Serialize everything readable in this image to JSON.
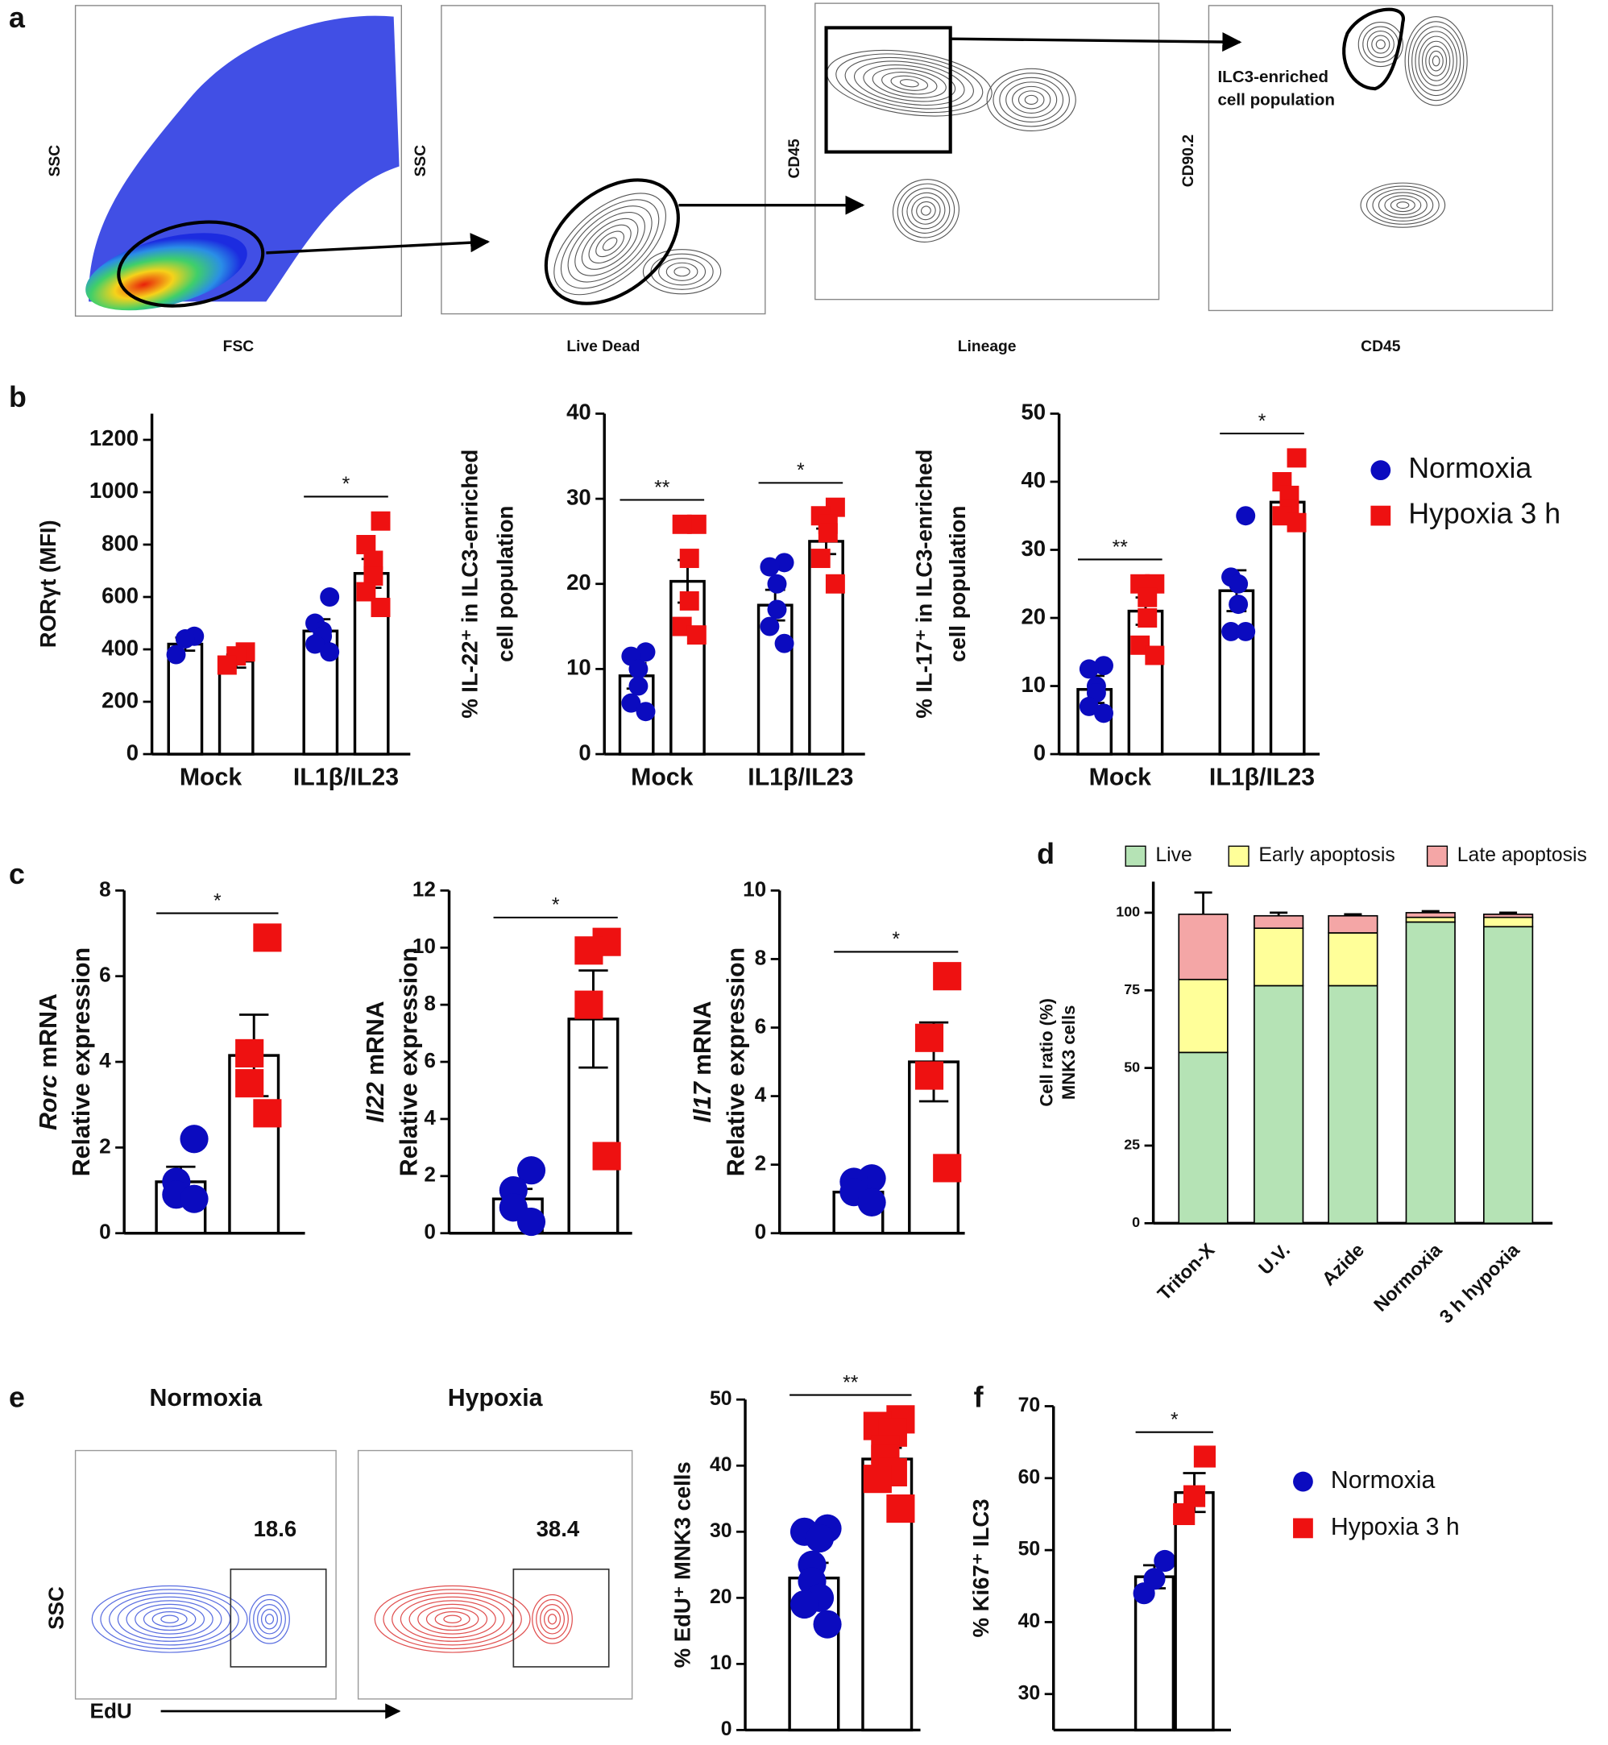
{
  "panel_labels": [
    "a",
    "b",
    "c",
    "d",
    "e",
    "f"
  ],
  "flow": {
    "a": [
      {
        "x": "FSC",
        "y": "SSC"
      },
      {
        "x": "Live Dead",
        "y": "SSC"
      },
      {
        "x": "Lineage",
        "y": "CD45"
      },
      {
        "x": "CD45",
        "y": "CD90.2"
      }
    ],
    "gate_label": [
      "ILC3-enriched",
      "cell population"
    ],
    "e": [
      {
        "title": "Normoxia",
        "value": 18.6
      },
      {
        "title": "Hypoxia",
        "value": 38.4
      }
    ],
    "e_axes": {
      "x": "EdU",
      "y": "SSC"
    }
  },
  "chart_data": [
    {
      "type": "bar",
      "ylabel": [
        "RORγt (MFI)"
      ],
      "categories": [
        "Mock",
        "IL1β/IL23"
      ],
      "ylim": [
        0,
        1300
      ],
      "yticks": [
        0,
        200,
        400,
        600,
        800,
        1000,
        1200
      ],
      "series": [
        {
          "color": "#0b0bbf",
          "marker": "circle",
          "values": [
            420,
            470
          ],
          "errors": [
            25,
            45
          ],
          "points": [
            [
              450,
              440,
              380
            ],
            [
              600,
              500,
              470,
              450,
              420,
              390
            ]
          ]
        },
        {
          "color": "#ee1111",
          "marker": "square",
          "values": [
            355,
            690
          ],
          "errors": [
            25,
            55
          ],
          "points": [
            [
              390,
              375,
              340
            ],
            [
              890,
              800,
              740,
              680,
              620,
              560
            ]
          ]
        }
      ],
      "annotations": [
        {
          "text": "*",
          "category": 1
        }
      ]
    },
    {
      "type": "bar",
      "ylabel": [
        "% IL-22⁺ in ILC3-enriched",
        "cell population"
      ],
      "categories": [
        "Mock",
        "IL1β/IL23"
      ],
      "ylim": [
        0,
        40
      ],
      "yticks": [
        0,
        10,
        20,
        30,
        40
      ],
      "series": [
        {
          "color": "#0b0bbf",
          "marker": "circle",
          "values": [
            9.2,
            17.5
          ],
          "errors": [
            1.5,
            1.8
          ],
          "points": [
            [
              12,
              11.5,
              10,
              8,
              6,
              5
            ],
            [
              22.5,
              22,
              20,
              17,
              15,
              13
            ]
          ]
        },
        {
          "color": "#ee1111",
          "marker": "square",
          "values": [
            20.3,
            25
          ],
          "errors": [
            2.5,
            1.5
          ],
          "points": [
            [
              27,
              27,
              23,
              18,
              15,
              14
            ],
            [
              29,
              28,
              27,
              26,
              23,
              20
            ]
          ]
        }
      ],
      "annotations": [
        {
          "text": "**",
          "category": 0
        },
        {
          "text": "*",
          "category": 1
        }
      ]
    },
    {
      "type": "bar",
      "ylabel": [
        "% IL-17⁺ in ILC3-enriched",
        "cell population"
      ],
      "categories": [
        "Mock",
        "IL1β/IL23"
      ],
      "ylim": [
        0,
        50
      ],
      "yticks": [
        0,
        10,
        20,
        30,
        40,
        50
      ],
      "legend": "right",
      "series": [
        {
          "name": "Normoxia",
          "color": "#0b0bbf",
          "marker": "circle",
          "values": [
            9.5,
            24
          ],
          "errors": [
            2,
            3
          ],
          "points": [
            [
              13,
              12.5,
              10,
              9,
              7,
              6
            ],
            [
              35,
              26,
              25,
              22,
              18,
              18
            ]
          ]
        },
        {
          "name": "Hypoxia 3 h",
          "color": "#ee1111",
          "marker": "square",
          "values": [
            21,
            37
          ],
          "errors": [
            2,
            2
          ],
          "points": [
            [
              25,
              25,
              23,
              20,
              16,
              14.5
            ],
            [
              43.5,
              40,
              38,
              36,
              35,
              34
            ]
          ]
        }
      ],
      "annotations": [
        {
          "text": "**",
          "category": 0
        },
        {
          "text": "*",
          "category": 1
        }
      ]
    },
    {
      "type": "bar",
      "ylabel_gene": "Rorc",
      "ylabel": [
        "mRNA",
        "Relative expression"
      ],
      "ylim": [
        0,
        8
      ],
      "yticks": [
        0,
        2,
        4,
        6,
        8
      ],
      "series": [
        {
          "color": "#0b0bbf",
          "marker": "circle",
          "values": [
            1.2
          ],
          "errors": [
            0.35
          ],
          "points": [
            [
              2.2,
              1.2,
              0.9,
              0.8
            ]
          ]
        },
        {
          "color": "#ee1111",
          "marker": "square",
          "values": [
            4.15
          ],
          "errors": [
            0.95
          ],
          "points": [
            [
              6.9,
              4.2,
              3.5,
              2.8
            ]
          ]
        }
      ],
      "annotations": [
        {
          "text": "*"
        }
      ]
    },
    {
      "type": "bar",
      "ylabel_gene": "Il22",
      "ylabel": [
        "mRNA",
        "Relative expression"
      ],
      "ylim": [
        0,
        12
      ],
      "yticks": [
        0,
        2,
        4,
        6,
        8,
        10,
        12
      ],
      "series": [
        {
          "color": "#0b0bbf",
          "marker": "circle",
          "values": [
            1.2
          ],
          "errors": [
            0.35
          ],
          "points": [
            [
              2.2,
              1.5,
              0.9,
              0.4
            ]
          ]
        },
        {
          "color": "#ee1111",
          "marker": "square",
          "values": [
            7.5
          ],
          "errors": [
            1.7
          ],
          "points": [
            [
              10.2,
              9.9,
              8,
              2.7
            ]
          ]
        }
      ],
      "annotations": [
        {
          "text": "*"
        }
      ]
    },
    {
      "type": "bar",
      "ylabel_gene": "Il17",
      "ylabel": [
        "mRNA",
        "Relative expression"
      ],
      "ylim": [
        0,
        10
      ],
      "yticks": [
        0,
        2,
        4,
        6,
        8,
        10
      ],
      "series": [
        {
          "color": "#0b0bbf",
          "marker": "circle",
          "values": [
            1.2
          ],
          "errors": [
            0.2
          ],
          "points": [
            [
              1.6,
              1.5,
              1.2,
              0.9
            ]
          ]
        },
        {
          "color": "#ee1111",
          "marker": "square",
          "values": [
            5.0
          ],
          "errors": [
            1.15
          ],
          "points": [
            [
              7.5,
              5.7,
              4.6,
              1.9
            ]
          ]
        }
      ],
      "annotations": [
        {
          "text": "*"
        }
      ]
    },
    {
      "type": "stacked_bar",
      "ylabel": [
        "Cell ratio (%)",
        "MNK3 cells"
      ],
      "categories": [
        "Triton-X",
        "U.V.",
        "Azide",
        "Normoxia",
        "3 h hypoxia"
      ],
      "ylim": [
        0,
        110
      ],
      "yticks": [
        0,
        25,
        50,
        75,
        100
      ],
      "legend": "top",
      "series": [
        {
          "name": "Live",
          "color": "#b5e3b5",
          "values": [
            55,
            76.5,
            76.5,
            97,
            95.5
          ],
          "errors": [
            6,
            2.5,
            2.5,
            0.5,
            0.5
          ]
        },
        {
          "name": "Early apoptosis",
          "color": "#ffff99",
          "values": [
            23.5,
            18.5,
            17,
            1.5,
            3
          ],
          "errors": [
            1,
            1.5,
            1.5,
            0.5,
            0.5
          ]
        },
        {
          "name": "Late apoptosis",
          "color": "#f4a6a6",
          "values": [
            21,
            4,
            5.5,
            1.5,
            1
          ],
          "errors": [
            7,
            1,
            0.5,
            0.5,
            0.5
          ]
        }
      ]
    },
    {
      "type": "bar",
      "ylabel": [
        "% EdU⁺ MNK3 cells"
      ],
      "ylim": [
        0,
        50
      ],
      "yticks": [
        0,
        10,
        20,
        30,
        40,
        50
      ],
      "series": [
        {
          "color": "#0b0bbf",
          "marker": "circle",
          "values": [
            23
          ],
          "errors": [
            2.3
          ],
          "points": [
            [
              30.5,
              30,
              29,
              25,
              22.5,
              20,
              19,
              16
            ]
          ]
        },
        {
          "color": "#ee1111",
          "marker": "square",
          "values": [
            41
          ],
          "errors": [
            1.7
          ],
          "points": [
            [
              47,
              46,
              45,
              42.5,
              41,
              39,
              38,
              33.5
            ]
          ]
        }
      ],
      "annotations": [
        {
          "text": "**"
        }
      ]
    },
    {
      "type": "bar",
      "ylabel": [
        "% Ki67⁺ ILC3"
      ],
      "ylim": [
        25,
        70
      ],
      "yticks": [
        30,
        40,
        50,
        60,
        70
      ],
      "legend": "right",
      "series": [
        {
          "name": "Normoxia",
          "color": "#0b0bbf",
          "marker": "circle",
          "values": [
            46.3
          ],
          "errors": [
            1.6
          ],
          "points": [
            [
              48.5,
              46,
              44
            ]
          ]
        },
        {
          "name": "Hypoxia 3 h",
          "color": "#ee1111",
          "marker": "square",
          "values": [
            58
          ],
          "errors": [
            2.7
          ],
          "points": [
            [
              63,
              57.5,
              55
            ]
          ]
        }
      ],
      "annotations": [
        {
          "text": "*"
        }
      ]
    }
  ]
}
